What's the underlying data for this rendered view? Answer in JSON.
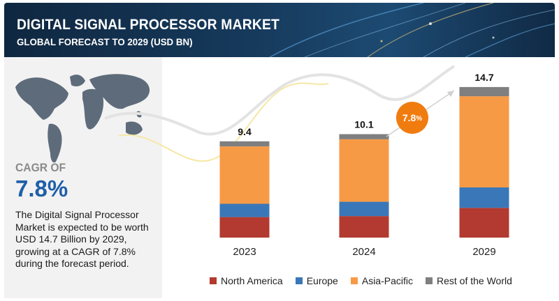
{
  "header": {
    "title": "DIGITAL SIGNAL PROCESSOR MARKET",
    "subtitle": "GLOBAL FORECAST TO 2029 (USD BN)"
  },
  "sidebar": {
    "cagr_label": "CAGR OF",
    "cagr_value": "7.8%",
    "description": "The Digital Signal Processor Market is expected to be worth USD 14.7 Billion by 2029, growing at a CAGR of 7.8% during the forecast period."
  },
  "cagr_bubble": {
    "value": "7.8",
    "unit": "%"
  },
  "colors": {
    "north_america": "#b33a30",
    "europe": "#3a77b8",
    "asia_pacific": "#f79a45",
    "rest_of_world": "#7f7f7f",
    "accent": "#f07c10"
  },
  "chart_data": {
    "type": "bar",
    "stacked": true,
    "categories": [
      "2023",
      "2024",
      "2029"
    ],
    "totals": [
      9.4,
      10.1,
      14.7
    ],
    "total_labels": [
      "9.4",
      "10.1",
      "14.7"
    ],
    "series": [
      {
        "name": "North America",
        "values": [
          2.0,
          2.1,
          2.9
        ],
        "color": "#b33a30"
      },
      {
        "name": "Europe",
        "values": [
          1.3,
          1.4,
          2.0
        ],
        "color": "#3a77b8"
      },
      {
        "name": "Asia-Pacific",
        "values": [
          5.6,
          6.1,
          8.9
        ],
        "color": "#f79a45"
      },
      {
        "name": "Rest of the World",
        "values": [
          0.5,
          0.5,
          0.9
        ],
        "color": "#7f7f7f"
      }
    ],
    "title": "DIGITAL SIGNAL PROCESSOR MARKET",
    "subtitle": "GLOBAL FORECAST TO 2029 (USD BN)",
    "legend_position": "bottom",
    "grid": false
  }
}
